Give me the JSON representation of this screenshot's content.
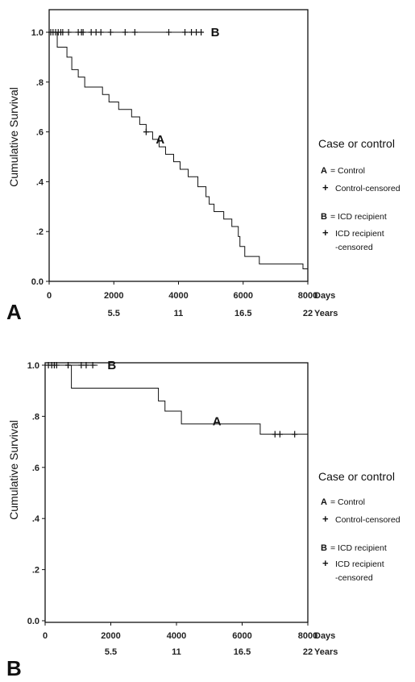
{
  "chart_data": [
    {
      "type": "line",
      "panel_label": "A",
      "ylabel": "Cumulative Survival",
      "y_ticks": [
        "0.0",
        ".2",
        ".4",
        ".6",
        ".8",
        "1.0"
      ],
      "x_ticks": [
        "0",
        "2000",
        "4000",
        "6000",
        "8000"
      ],
      "x_unit": "Days",
      "years_ticks": [
        "5.5",
        "11",
        "16.5",
        "22"
      ],
      "years_unit": "Years",
      "xlim": [
        0,
        8000
      ],
      "ylim": [
        0,
        1.0
      ],
      "legend": {
        "title": "Case or control",
        "entries": [
          {
            "key": "A",
            "text": "= Control"
          },
          {
            "key": "+",
            "text": "Control-censored"
          },
          {
            "key": "B",
            "text": "= ICD recipient"
          },
          {
            "key": "+",
            "text": "ICD recipient",
            "text2": "-censored"
          }
        ]
      },
      "series": [
        {
          "name": "A",
          "label_at": [
            3200,
            0.57
          ],
          "steps": [
            [
              0,
              1.0
            ],
            [
              250,
              0.94
            ],
            [
              550,
              0.9
            ],
            [
              700,
              0.85
            ],
            [
              900,
              0.82
            ],
            [
              1100,
              0.78
            ],
            [
              1650,
              0.75
            ],
            [
              1850,
              0.72
            ],
            [
              2150,
              0.69
            ],
            [
              2550,
              0.66
            ],
            [
              2800,
              0.63
            ],
            [
              3000,
              0.6
            ],
            [
              3200,
              0.57
            ],
            [
              3400,
              0.54
            ],
            [
              3600,
              0.51
            ],
            [
              3850,
              0.48
            ],
            [
              4050,
              0.45
            ],
            [
              4300,
              0.42
            ],
            [
              4600,
              0.38
            ],
            [
              4850,
              0.34
            ],
            [
              4950,
              0.31
            ],
            [
              5100,
              0.28
            ],
            [
              5400,
              0.25
            ],
            [
              5650,
              0.22
            ],
            [
              5850,
              0.18
            ],
            [
              5900,
              0.14
            ],
            [
              6050,
              0.1
            ],
            [
              6500,
              0.07
            ],
            [
              7850,
              0.05
            ]
          ],
          "end_x": 8000,
          "censored": [
            [
              3000,
              0.6
            ]
          ]
        },
        {
          "name": "B",
          "label_at": [
            4900,
            1.0
          ],
          "steps": [
            [
              0,
              1.0
            ]
          ],
          "end_x": 4750,
          "censored": [
            [
              50,
              1.0
            ],
            [
              120,
              1.0
            ],
            [
              200,
              1.0
            ],
            [
              280,
              1.0
            ],
            [
              360,
              1.0
            ],
            [
              420,
              1.0
            ],
            [
              600,
              1.0
            ],
            [
              900,
              1.0
            ],
            [
              1000,
              1.0
            ],
            [
              1050,
              1.0
            ],
            [
              1300,
              1.0
            ],
            [
              1450,
              1.0
            ],
            [
              1600,
              1.0
            ],
            [
              1900,
              1.0
            ],
            [
              2350,
              1.0
            ],
            [
              2650,
              1.0
            ],
            [
              3700,
              1.0
            ],
            [
              4200,
              1.0
            ],
            [
              4400,
              1.0
            ],
            [
              4550,
              1.0
            ],
            [
              4700,
              1.0
            ]
          ]
        }
      ]
    },
    {
      "type": "line",
      "panel_label": "B",
      "ylabel": "Cumulative Survival",
      "y_ticks": [
        "0.0",
        ".2",
        ".4",
        ".6",
        ".8",
        "1.0"
      ],
      "x_ticks": [
        "0",
        "2000",
        "4000",
        "6000",
        "8000"
      ],
      "x_unit": "Days",
      "years_ticks": [
        "5.5",
        "11",
        "16.5",
        "22"
      ],
      "years_unit": "Years",
      "xlim": [
        0,
        8000
      ],
      "ylim": [
        0,
        1.0
      ],
      "legend": {
        "title": "Case or control",
        "entries": [
          {
            "key": "A",
            "text": "= Control"
          },
          {
            "key": "+",
            "text": "Control-censored"
          },
          {
            "key": "B",
            "text": "= ICD recipient"
          },
          {
            "key": "+",
            "text": "ICD recipient",
            "text2": "-censored"
          }
        ]
      },
      "series": [
        {
          "name": "A",
          "label_at": [
            5000,
            0.78
          ],
          "steps": [
            [
              0,
              1.0
            ],
            [
              800,
              0.91
            ],
            [
              3450,
              0.86
            ],
            [
              3650,
              0.82
            ],
            [
              4150,
              0.77
            ],
            [
              6550,
              0.73
            ]
          ],
          "end_x": 8000,
          "censored": [
            [
              700,
              1.0
            ],
            [
              7000,
              0.73
            ],
            [
              7150,
              0.73
            ],
            [
              7600,
              0.73
            ]
          ]
        },
        {
          "name": "B",
          "label_at": [
            1800,
            1.0
          ],
          "steps": [
            [
              0,
              1.0
            ]
          ],
          "end_x": 1600,
          "censored": [
            [
              100,
              1.0
            ],
            [
              200,
              1.0
            ],
            [
              280,
              1.0
            ],
            [
              350,
              1.0
            ],
            [
              700,
              1.0
            ],
            [
              1100,
              1.0
            ],
            [
              1250,
              1.0
            ],
            [
              1450,
              1.0
            ]
          ]
        }
      ]
    }
  ]
}
